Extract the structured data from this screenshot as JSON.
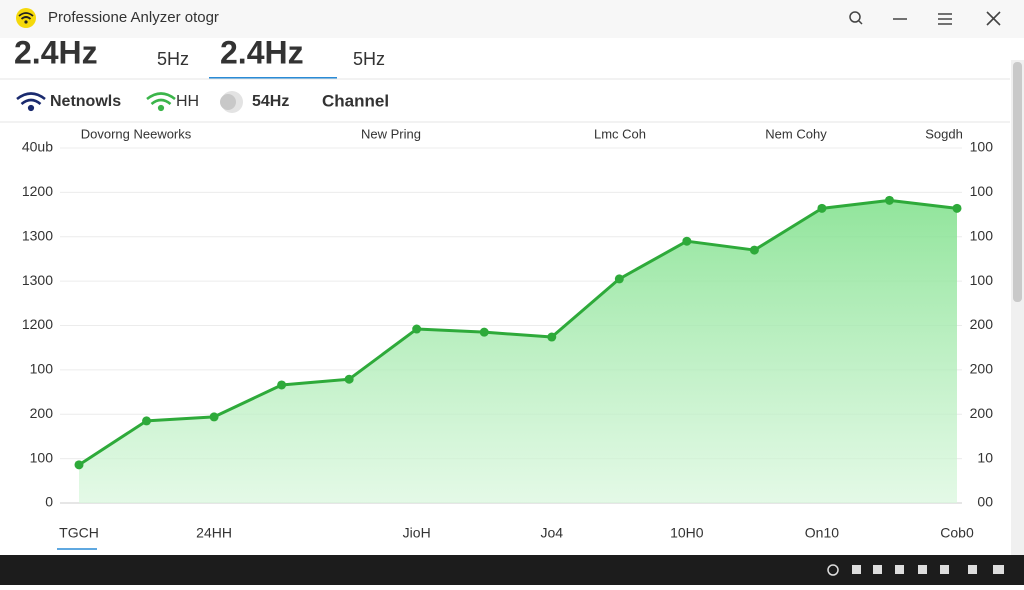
{
  "window": {
    "title": "Professione Anlyzer otogr"
  },
  "tabs": [
    "2.4Hz",
    "5Hz",
    "2.4Hz",
    "5Hz"
  ],
  "filters": [
    "Netnowls",
    "HH",
    "54Hz",
    "Channel"
  ],
  "chart_data": {
    "type": "line",
    "columns": [
      "Dovorng Neeworks",
      "New Pring",
      "Lmc Coh",
      "Nem Cohy",
      "Sogdh"
    ],
    "categories": [
      "TGCH",
      null,
      "24HH",
      null,
      null,
      "JioH",
      null,
      "Jo4",
      null,
      "10H0",
      null,
      "On10",
      null,
      "Cob0"
    ],
    "series": [
      {
        "color": "#2eaa3a",
        "values": [
          0.86,
          1.85,
          1.94,
          2.66,
          2.79,
          3.92,
          3.85,
          3.74,
          5.05,
          5.9,
          5.7,
          6.64,
          6.82,
          6.64
        ]
      }
    ],
    "ylim": [
      0,
      8
    ],
    "yticks": [
      0,
      {
        "value": 1,
        "label": "100"
      },
      {
        "value": 2,
        "label": "200"
      },
      {
        "value": 3,
        "label": "100"
      },
      {
        "value": 4,
        "label": "1200"
      },
      {
        "value": 5,
        "label": "1300"
      },
      {
        "value": 6,
        "label": "1300"
      },
      {
        "value": 7,
        "label": "1200"
      },
      {
        "value": 8,
        "label": "40ub"
      }
    ],
    "y2lim": [
      0,
      8
    ],
    "y2ticks": [
      {
        "value": 0,
        "label": "00"
      },
      {
        "value": 1,
        "label": "10"
      },
      {
        "value": 2,
        "label": "200"
      },
      {
        "value": 3,
        "label": "200"
      },
      {
        "value": 4,
        "label": "200"
      },
      {
        "value": 5,
        "label": "100"
      },
      {
        "value": 6,
        "label": "100"
      },
      {
        "value": 7,
        "label": "100"
      },
      {
        "value": 8,
        "label": "100"
      }
    ],
    "grid": true
  }
}
